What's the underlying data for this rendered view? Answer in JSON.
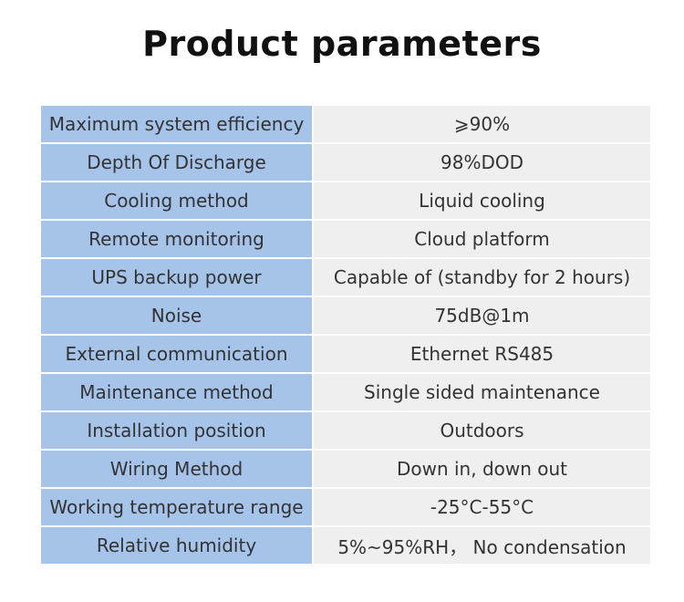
{
  "header": {
    "title": "Product parameters"
  },
  "table": {
    "rows": [
      [
        "Maximum system efficiency",
        "⩾90%"
      ],
      [
        "Depth Of Discharge",
        "98%DOD"
      ],
      [
        "Cooling method",
        "Liquid cooling"
      ],
      [
        "Remote monitoring",
        "Cloud platform"
      ],
      [
        "UPS backup power",
        "Capable of (standby for 2 hours)"
      ],
      [
        "Noise",
        "75dB@1m"
      ],
      [
        "External communication",
        "Ethernet RS485"
      ],
      [
        "Maintenance method",
        "Single sided maintenance"
      ],
      [
        "Installation position",
        "Outdoors"
      ],
      [
        "Wiring Method",
        "Down in, down out"
      ],
      [
        "Working temperature range",
        "-25°C-55°C"
      ],
      [
        "Relative humidity",
        "5%~95%RH， No condensation"
      ]
    ]
  }
}
